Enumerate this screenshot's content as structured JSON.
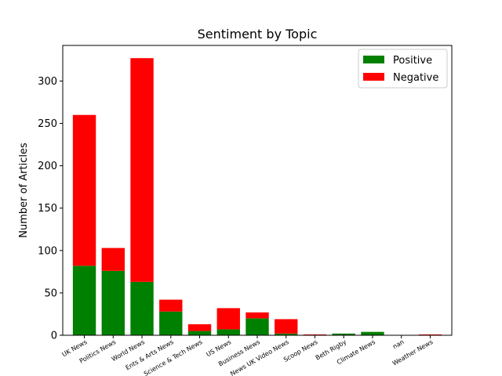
{
  "chart_data": {
    "type": "bar",
    "stacked": true,
    "title": "Sentiment by Topic",
    "xlabel": "",
    "ylabel": "Number of Articles",
    "ylim": [
      0,
      342
    ],
    "yticks": [
      0,
      50,
      100,
      150,
      200,
      250,
      300
    ],
    "legend_position": "top-right",
    "grid": false,
    "categories": [
      "UK News",
      "Politics News",
      "World News",
      "Ents & Arts News",
      "Science & Tech News",
      "US News",
      "Business News",
      "News UK Video News",
      "Scoop News",
      "Beth Rigby",
      "Climate News",
      "nan",
      "Weather News"
    ],
    "series": [
      {
        "name": "Positive",
        "color": "#008000",
        "values": [
          82,
          76,
          63,
          28,
          5,
          7,
          20,
          2,
          0,
          2,
          4,
          0,
          0
        ]
      },
      {
        "name": "Negative",
        "color": "#ff0000",
        "values": [
          178,
          27,
          264,
          14,
          8,
          25,
          7,
          17,
          1,
          0,
          0,
          0,
          1
        ]
      }
    ]
  }
}
